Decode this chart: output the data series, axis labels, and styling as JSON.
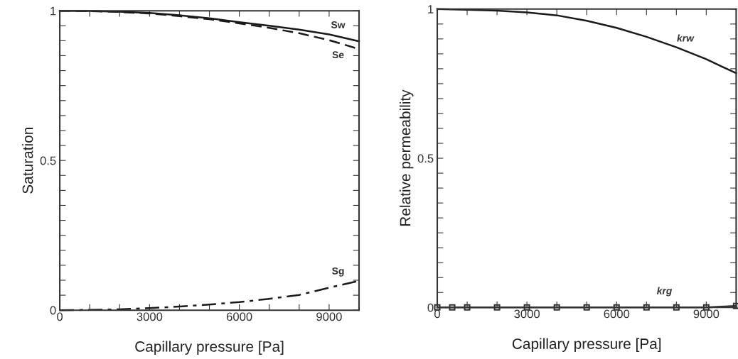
{
  "chart_data": [
    {
      "type": "line",
      "xlabel": "Capillary pressure [Pa]",
      "ylabel": "Saturation",
      "x": [
        0,
        1000,
        2000,
        3000,
        4000,
        5000,
        6000,
        7000,
        8000,
        9000,
        10000
      ],
      "series": [
        {
          "name": "Sw",
          "color": "#1a1a1a",
          "line_style": "solid",
          "values": [
            1,
            0.999,
            0.997,
            0.993,
            0.985,
            0.975,
            0.962,
            0.95,
            0.937,
            0.921,
            0.898
          ]
        },
        {
          "name": "Se",
          "color": "#1a1a1a",
          "line_style": "dashed",
          "values": [
            1,
            0.999,
            0.996,
            0.991,
            0.982,
            0.972,
            0.958,
            0.943,
            0.925,
            0.902,
            0.872
          ]
        },
        {
          "name": "Sg",
          "color": "#1a1a1a",
          "line_style": "dashdot",
          "values": [
            0,
            0.001,
            0.003,
            0.007,
            0.012,
            0.019,
            0.027,
            0.038,
            0.051,
            0.075,
            0.098
          ]
        }
      ],
      "xlim": [
        0,
        10000
      ],
      "ylim": [
        0,
        1
      ],
      "xticks": [
        0,
        {
          "value": 1000,
          "label": null
        },
        {
          "value": 2000,
          "label": null
        },
        3000,
        {
          "value": 4000,
          "label": null
        },
        {
          "value": 5000,
          "label": null
        },
        6000,
        {
          "value": 7000,
          "label": null
        },
        {
          "value": 8000,
          "label": null
        },
        9000
      ],
      "yticks": [
        0,
        {
          "value": 0.05,
          "label": null
        },
        {
          "value": 0.1,
          "label": null
        },
        {
          "value": 0.15,
          "label": null
        },
        {
          "value": 0.2,
          "label": null
        },
        {
          "value": 0.25,
          "label": null
        },
        {
          "value": 0.3,
          "label": null
        },
        {
          "value": 0.35,
          "label": null
        },
        {
          "value": 0.4,
          "label": null
        },
        {
          "value": 0.45,
          "label": null
        },
        0.5,
        {
          "value": 0.55,
          "label": null
        },
        {
          "value": 0.6,
          "label": null
        },
        {
          "value": 0.65,
          "label": null
        },
        {
          "value": 0.7,
          "label": null
        },
        {
          "value": 0.75,
          "label": null
        },
        {
          "value": 0.8,
          "label": null
        },
        {
          "value": 0.85,
          "label": null
        },
        {
          "value": 0.9,
          "label": null
        },
        {
          "value": 0.95,
          "label": null
        },
        1
      ],
      "grid": false,
      "legend": false,
      "marker": "none"
    },
    {
      "type": "line",
      "xlabel": "Capillary pressure [Pa]",
      "ylabel": "Relative permeability",
      "series": [
        {
          "name": "krw",
          "color": "#1a1a1a",
          "line_style": "solid",
          "marker": "none",
          "x": [
            0,
            1000,
            2000,
            3000,
            4000,
            5000,
            6000,
            7000,
            8000,
            9000,
            10000
          ],
          "values": [
            1,
            0.998,
            0.995,
            0.989,
            0.979,
            0.961,
            0.937,
            0.907,
            0.872,
            0.832,
            0.785
          ]
        },
        {
          "name": "krg",
          "color": "#333333",
          "line_style": "solid",
          "marker": "square",
          "x": [
            0,
            500,
            1000,
            2000,
            3000,
            4000,
            5000,
            6000,
            7000,
            8000,
            9000,
            10000
          ],
          "values": [
            0,
            0,
            0,
            0,
            0,
            0,
            0,
            0,
            0,
            0,
            0,
            0.005
          ]
        }
      ],
      "xlim": [
        0,
        10000
      ],
      "ylim": [
        0,
        1
      ],
      "xticks": [
        0,
        {
          "value": 1000,
          "label": null
        },
        {
          "value": 2000,
          "label": null
        },
        3000,
        {
          "value": 4000,
          "label": null
        },
        {
          "value": 5000,
          "label": null
        },
        6000,
        {
          "value": 7000,
          "label": null
        },
        {
          "value": 8000,
          "label": null
        },
        9000
      ],
      "yticks": [
        0,
        {
          "value": 0.05,
          "label": null
        },
        {
          "value": 0.1,
          "label": null
        },
        {
          "value": 0.15,
          "label": null
        },
        {
          "value": 0.2,
          "label": null
        },
        {
          "value": 0.25,
          "label": null
        },
        {
          "value": 0.3,
          "label": null
        },
        {
          "value": 0.35,
          "label": null
        },
        {
          "value": 0.4,
          "label": null
        },
        {
          "value": 0.45,
          "label": null
        },
        0.5,
        {
          "value": 0.55,
          "label": null
        },
        {
          "value": 0.6,
          "label": null
        },
        {
          "value": 0.65,
          "label": null
        },
        {
          "value": 0.7,
          "label": null
        },
        {
          "value": 0.75,
          "label": null
        },
        {
          "value": 0.8,
          "label": null
        },
        {
          "value": 0.85,
          "label": null
        },
        {
          "value": 0.9,
          "label": null
        },
        {
          "value": 0.95,
          "label": null
        },
        1
      ],
      "grid": false,
      "legend": false
    }
  ]
}
